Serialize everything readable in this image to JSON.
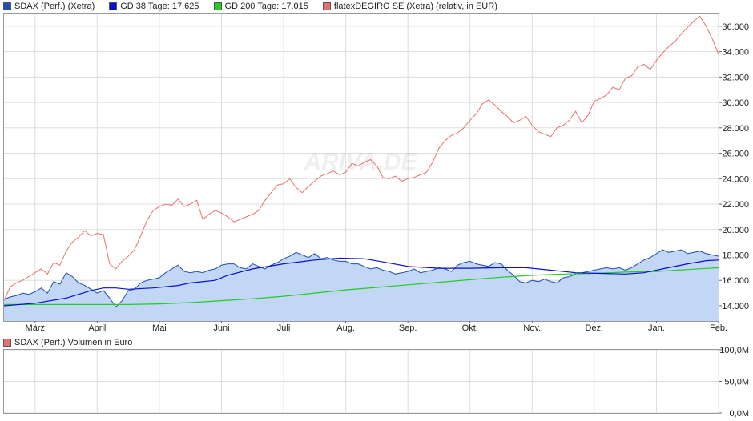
{
  "legend": {
    "items": [
      {
        "label": "SDAX (Perf.) (Xetra)",
        "color": "#1f4fb4"
      },
      {
        "label": "GD 38 Tage: 17.625",
        "color": "#0a0fd0"
      },
      {
        "label": "GD 200 Tage: 17.015",
        "color": "#22cc22"
      },
      {
        "label": "flatexDEGIRO SE (Xetra) (relativ, in EUR)",
        "color": "#e87070"
      }
    ]
  },
  "watermark": "ARIVA.DE",
  "volume_legend": {
    "label": "SDAX (Perf.) Volumen in Euro",
    "color": "#e87070"
  },
  "colors": {
    "sdax_line": "#1f4fb4",
    "sdax_fill": "#c2d6f6",
    "gd38": "#0a0fd0",
    "gd200": "#22cc22",
    "flatex": "#e87070",
    "grid": "#dddddd"
  },
  "chart_data": [
    {
      "type": "line",
      "x_labels": [
        "März",
        "April",
        "Mai",
        "Juni",
        "Juli",
        "Aug.",
        "Sep.",
        "Okt.",
        "Nov.",
        "Dez.",
        "Jan.",
        "Feb."
      ],
      "x_label_positions": [
        0.5,
        1.5,
        2.5,
        3.5,
        4.5,
        5.5,
        6.5,
        7.5,
        8.5,
        9.5,
        10.5,
        11.5
      ],
      "xlim": [
        0,
        11.5
      ],
      "ylim": [
        12.8,
        37.0
      ],
      "y_ticks": [
        14,
        16,
        18,
        20,
        22,
        24,
        26,
        28,
        30,
        32,
        34,
        36
      ],
      "y_tick_labels": [
        "14.000",
        "16.000",
        "18.000",
        "20.000",
        "22.000",
        "24.000",
        "26.000",
        "28.000",
        "30.000",
        "32.000",
        "34.000",
        "36.000"
      ],
      "y_axis_side": "right",
      "grid": true,
      "legend_position": "top-left",
      "series": [
        {
          "name": "SDAX (Perf.) (Xetra)",
          "style": "area",
          "x": [
            0.0,
            0.1,
            0.2,
            0.3,
            0.4,
            0.5,
            0.6,
            0.7,
            0.8,
            0.9,
            1.0,
            1.1,
            1.2,
            1.3,
            1.4,
            1.5,
            1.6,
            1.7,
            1.8,
            1.9,
            2.0,
            2.1,
            2.2,
            2.3,
            2.4,
            2.5,
            2.6,
            2.7,
            2.8,
            2.9,
            3.0,
            3.1,
            3.2,
            3.3,
            3.4,
            3.5,
            3.6,
            3.7,
            3.8,
            3.9,
            4.0,
            4.1,
            4.2,
            4.3,
            4.4,
            4.5,
            4.6,
            4.7,
            4.8,
            4.9,
            5.0,
            5.1,
            5.2,
            5.3,
            5.4,
            5.5,
            5.6,
            5.7,
            5.8,
            5.9,
            6.0,
            6.1,
            6.2,
            6.3,
            6.4,
            6.5,
            6.6,
            6.7,
            6.8,
            6.9,
            7.0,
            7.1,
            7.2,
            7.3,
            7.4,
            7.5,
            7.6,
            7.7,
            7.8,
            7.9,
            8.0,
            8.1,
            8.2,
            8.3,
            8.4,
            8.5,
            8.6,
            8.7,
            8.8,
            8.9,
            9.0,
            9.1,
            9.2,
            9.3,
            9.4,
            9.5,
            9.6,
            9.7,
            9.8,
            9.9,
            10.0,
            10.1,
            10.2,
            10.3,
            10.4,
            10.5,
            10.6,
            10.7,
            10.8,
            10.9,
            11.0,
            11.1,
            11.2,
            11.3,
            11.4,
            11.5
          ],
          "values": [
            14.5,
            14.7,
            14.8,
            15.0,
            14.9,
            15.1,
            15.4,
            15.0,
            15.9,
            15.7,
            16.6,
            16.3,
            15.8,
            15.6,
            15.3,
            15.0,
            15.2,
            14.6,
            13.9,
            14.4,
            15.2,
            15.3,
            15.8,
            16.0,
            16.1,
            16.2,
            16.6,
            16.9,
            17.2,
            16.7,
            16.6,
            16.7,
            16.6,
            16.8,
            16.9,
            17.2,
            17.3,
            17.3,
            17.0,
            16.9,
            17.3,
            17.1,
            16.9,
            17.2,
            17.4,
            17.7,
            17.9,
            18.2,
            18.0,
            17.8,
            18.1,
            17.7,
            17.8,
            17.6,
            17.5,
            17.5,
            17.3,
            17.3,
            17.1,
            16.9,
            17.0,
            16.8,
            16.7,
            16.5,
            16.6,
            16.7,
            16.9,
            16.6,
            16.7,
            16.8,
            17.0,
            16.9,
            16.7,
            17.2,
            17.4,
            17.5,
            17.3,
            17.2,
            17.1,
            17.4,
            17.3,
            16.8,
            16.4,
            15.9,
            15.8,
            16.0,
            15.9,
            16.1,
            15.9,
            15.8,
            16.2,
            16.3,
            16.5,
            16.6,
            16.7,
            16.8,
            16.9,
            17.0,
            16.9,
            17.0,
            16.8,
            17.0,
            17.3,
            17.6,
            17.8,
            18.1,
            18.4,
            18.2,
            18.3,
            18.4,
            18.1,
            18.2,
            18.3,
            18.1,
            18.0,
            17.9
          ]
        },
        {
          "name": "GD 38 Tage: 17.625",
          "style": "line",
          "x": [
            0.0,
            0.5,
            1.0,
            1.2,
            1.4,
            1.6,
            1.8,
            2.0,
            2.4,
            2.8,
            3.0,
            3.4,
            3.6,
            4.0,
            4.5,
            5.0,
            5.4,
            5.8,
            6.1,
            6.5,
            7.0,
            7.5,
            8.0,
            8.4,
            8.8,
            9.2,
            9.6,
            10.0,
            10.3,
            10.6,
            11.0,
            11.3,
            11.5
          ],
          "values": [
            14.0,
            14.2,
            14.6,
            14.9,
            15.2,
            15.4,
            15.4,
            15.3,
            15.4,
            15.6,
            15.8,
            16.0,
            16.4,
            16.9,
            17.3,
            17.6,
            17.75,
            17.7,
            17.45,
            17.1,
            16.95,
            16.95,
            17.0,
            17.0,
            16.8,
            16.6,
            16.55,
            16.5,
            16.6,
            16.9,
            17.3,
            17.55,
            17.6
          ]
        },
        {
          "name": "GD 200 Tage: 17.015",
          "style": "line",
          "x": [
            0.0,
            1.0,
            2.0,
            2.5,
            3.0,
            3.5,
            4.0,
            4.5,
            5.0,
            5.5,
            6.0,
            6.5,
            7.0,
            7.5,
            8.0,
            8.5,
            9.0,
            9.5,
            10.0,
            10.5,
            11.0,
            11.5
          ],
          "values": [
            14.1,
            14.1,
            14.1,
            14.15,
            14.25,
            14.4,
            14.55,
            14.75,
            15.0,
            15.25,
            15.45,
            15.65,
            15.85,
            16.05,
            16.25,
            16.4,
            16.5,
            16.55,
            16.65,
            16.7,
            16.85,
            17.0
          ]
        },
        {
          "name": "flatexDEGIRO SE (Xetra) (relativ, in EUR)",
          "style": "line",
          "x": [
            0.0,
            0.1,
            0.2,
            0.3,
            0.4,
            0.5,
            0.6,
            0.7,
            0.8,
            0.9,
            1.0,
            1.1,
            1.2,
            1.3,
            1.4,
            1.5,
            1.6,
            1.7,
            1.8,
            1.9,
            2.0,
            2.1,
            2.2,
            2.3,
            2.4,
            2.5,
            2.6,
            2.7,
            2.8,
            2.9,
            3.0,
            3.1,
            3.2,
            3.3,
            3.4,
            3.5,
            3.6,
            3.7,
            3.8,
            3.9,
            4.0,
            4.1,
            4.2,
            4.3,
            4.4,
            4.5,
            4.6,
            4.7,
            4.8,
            4.9,
            5.0,
            5.1,
            5.2,
            5.3,
            5.4,
            5.5,
            5.6,
            5.7,
            5.8,
            5.9,
            6.0,
            6.1,
            6.2,
            6.3,
            6.4,
            6.5,
            6.6,
            6.7,
            6.8,
            6.9,
            7.0,
            7.1,
            7.2,
            7.3,
            7.4,
            7.5,
            7.6,
            7.7,
            7.8,
            7.9,
            8.0,
            8.1,
            8.2,
            8.3,
            8.4,
            8.5,
            8.6,
            8.7,
            8.8,
            8.9,
            9.0,
            9.1,
            9.2,
            9.3,
            9.4,
            9.5,
            9.6,
            9.7,
            9.8,
            9.9,
            10.0,
            10.1,
            10.2,
            10.3,
            10.4,
            10.5,
            10.6,
            10.7,
            10.8,
            10.9,
            11.0,
            11.1,
            11.2,
            11.3,
            11.4,
            11.5
          ],
          "values": [
            14.4,
            15.5,
            15.8,
            16.0,
            16.3,
            16.6,
            16.9,
            16.5,
            17.4,
            17.2,
            18.3,
            19.0,
            19.4,
            19.9,
            19.5,
            19.7,
            19.6,
            17.3,
            16.9,
            17.5,
            17.9,
            18.4,
            19.5,
            20.7,
            21.5,
            21.8,
            22.0,
            21.9,
            22.4,
            21.8,
            22.0,
            22.3,
            20.8,
            21.2,
            21.5,
            21.3,
            21.0,
            20.6,
            20.8,
            21.0,
            21.2,
            21.5,
            22.3,
            22.9,
            23.5,
            23.6,
            24.0,
            23.3,
            22.9,
            23.4,
            23.8,
            24.2,
            24.4,
            24.6,
            24.3,
            24.5,
            25.2,
            25.0,
            25.3,
            25.5,
            25.0,
            24.1,
            24.0,
            24.2,
            23.8,
            24.0,
            24.1,
            24.3,
            24.5,
            25.3,
            26.4,
            27.0,
            27.4,
            27.6,
            28.0,
            28.6,
            29.1,
            29.9,
            30.2,
            29.8,
            29.3,
            28.9,
            28.4,
            28.6,
            28.9,
            28.2,
            27.7,
            27.5,
            27.3,
            28.0,
            28.2,
            28.6,
            29.3,
            28.4,
            29.0,
            30.1,
            30.3,
            30.6,
            31.2,
            31.0,
            31.9,
            32.1,
            32.8,
            33.0,
            32.6,
            33.3,
            33.9,
            34.4,
            34.8,
            35.4,
            35.9,
            36.4,
            36.8,
            36.0,
            35.0,
            33.8
          ]
        }
      ]
    },
    {
      "type": "bar",
      "title": "SDAX (Perf.) Volumen in Euro",
      "ylim": [
        0,
        100
      ],
      "y_ticks": [
        0,
        50,
        100
      ],
      "y_tick_labels": [
        "0,0M",
        "50,0M",
        "100,0M"
      ],
      "y_axis_side": "right",
      "grid": true,
      "values": []
    }
  ]
}
